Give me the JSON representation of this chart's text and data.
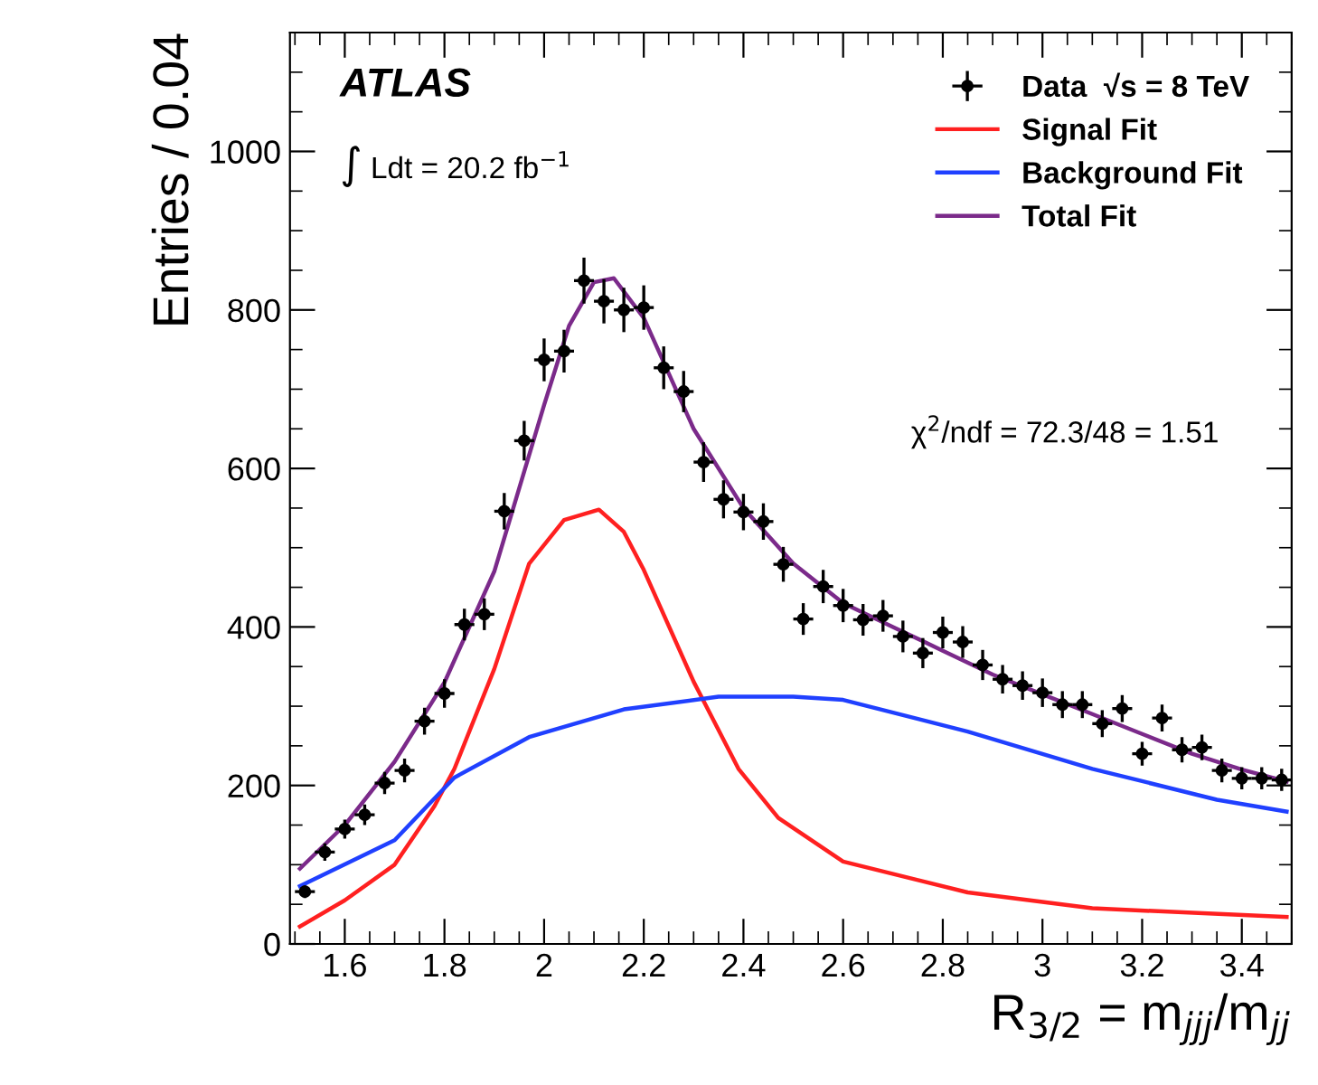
{
  "chart_data": {
    "type": "line",
    "xlabel": "R$_{3/2}$ = m$_{jjj}$/m$_{jj}$",
    "ylabel": "Entries / 0.04",
    "annotations": [
      "ATLAS",
      "∫ Ldt = 20.2 fb$^{−1}$",
      "χ$^{2}$/ndf = 72.3/48 = 1.51"
    ],
    "xlim": [
      1.49,
      3.5
    ],
    "xticks": [
      1.6,
      1.8,
      2,
      2.2,
      2.4,
      2.6,
      2.8,
      3,
      3.2,
      3.4
    ],
    "ylim": [
      0,
      1150
    ],
    "yticks": [
      0,
      200,
      400,
      600,
      800,
      1000
    ],
    "grid": false,
    "legend": "top right",
    "series": [
      {
        "name": "Data  √s = 8 TeV",
        "type": "scatter",
        "color": "#000000",
        "marker": "circle",
        "x": [
          1.52,
          1.56,
          1.6,
          1.64,
          1.68,
          1.72,
          1.76,
          1.8,
          1.84,
          1.88,
          1.92,
          1.96,
          2.0,
          2.04,
          2.08,
          2.12,
          2.16,
          2.2,
          2.24,
          2.28,
          2.32,
          2.36,
          2.4,
          2.44,
          2.48,
          2.52,
          2.56,
          2.6,
          2.64,
          2.68,
          2.72,
          2.76,
          2.8,
          2.84,
          2.88,
          2.92,
          2.96,
          3.0,
          3.04,
          3.08,
          3.12,
          3.16,
          3.2,
          3.24,
          3.28,
          3.32,
          3.36,
          3.4,
          3.44,
          3.48
        ],
        "values": [
          66,
          116,
          145,
          163,
          203,
          219,
          281,
          316,
          403,
          416,
          546,
          635,
          737,
          748,
          837,
          811,
          800,
          803,
          727,
          697,
          608,
          561,
          545,
          533,
          479,
          410,
          451,
          427,
          409,
          414,
          388,
          367,
          393,
          381,
          352,
          334,
          326,
          317,
          302,
          302,
          278,
          297,
          240,
          285,
          245,
          248,
          219,
          209,
          209,
          207
        ],
        "errors": [
          8,
          11,
          12,
          13,
          14,
          15,
          17,
          18,
          20,
          20,
          23,
          25,
          27,
          27,
          29,
          28,
          28,
          28,
          27,
          26,
          25,
          24,
          23,
          23,
          22,
          20,
          21,
          21,
          20,
          20,
          20,
          19,
          20,
          20,
          19,
          18,
          18,
          18,
          17,
          17,
          17,
          17,
          15,
          17,
          16,
          16,
          15,
          14,
          14,
          14
        ],
        "xerrors": [
          0.02,
          0.02,
          0.02,
          0.02,
          0.02,
          0.02,
          0.02,
          0.02,
          0.02,
          0.02,
          0.02,
          0.02,
          0.02,
          0.02,
          0.02,
          0.02,
          0.02,
          0.02,
          0.02,
          0.02,
          0.02,
          0.02,
          0.02,
          0.02,
          0.02,
          0.02,
          0.02,
          0.02,
          0.02,
          0.02,
          0.02,
          0.02,
          0.02,
          0.02,
          0.02,
          0.02,
          0.02,
          0.02,
          0.02,
          0.02,
          0.02,
          0.02,
          0.02,
          0.02,
          0.02,
          0.02,
          0.02,
          0.02,
          0.02,
          0.02
        ]
      },
      {
        "name": "Signal Fit",
        "type": "line",
        "color": "#ff2020",
        "x": [
          1.51,
          1.6,
          1.7,
          1.78,
          1.82,
          1.9,
          1.97,
          2.04,
          2.11,
          2.16,
          2.2,
          2.3,
          2.39,
          2.47,
          2.6,
          2.85,
          3.1,
          3.49
        ],
        "values": [
          22,
          55,
          100,
          174,
          221,
          347,
          480,
          535,
          548,
          520,
          472,
          331,
          221,
          159,
          104,
          65,
          45,
          34
        ]
      },
      {
        "name": "Background Fit",
        "type": "line",
        "color": "#2040ff",
        "x": [
          1.51,
          1.7,
          1.82,
          1.97,
          2.16,
          2.35,
          2.5,
          2.6,
          2.85,
          3.1,
          3.35,
          3.49
        ],
        "values": [
          73,
          131,
          210,
          261,
          296,
          312,
          312,
          308,
          268,
          221,
          182,
          167
        ]
      },
      {
        "name": "Total Fit",
        "type": "line",
        "color": "#7b2a8a",
        "x": [
          1.51,
          1.6,
          1.7,
          1.8,
          1.9,
          2.0,
          2.05,
          2.1,
          2.14,
          2.2,
          2.3,
          2.4,
          2.5,
          2.6,
          2.7,
          2.8,
          2.9,
          3.0,
          3.1,
          3.2,
          3.3,
          3.4,
          3.49
        ],
        "values": [
          95,
          150,
          230,
          330,
          470,
          680,
          780,
          835,
          840,
          790,
          650,
          550,
          480,
          430,
          400,
          370,
          340,
          315,
          290,
          265,
          240,
          220,
          205
        ]
      }
    ]
  }
}
